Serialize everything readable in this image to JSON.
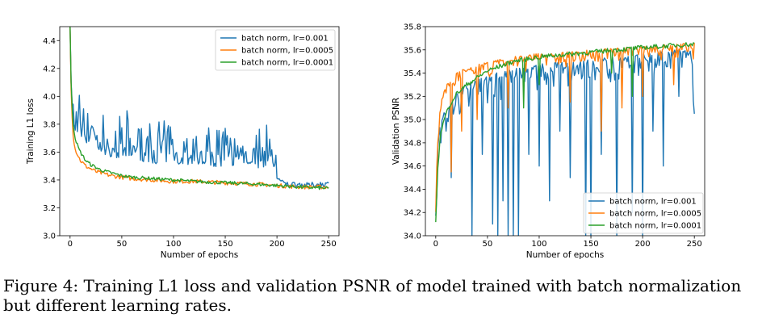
{
  "caption": "Figure 4: Training L1 loss and validation PSNR of model trained with batch normalization but different learning rates.",
  "colors": {
    "lr_0001": "#1f77b4",
    "lr_00005": "#ff7f0e",
    "lr_00001": "#2ca02c"
  },
  "chart_data": [
    {
      "type": "line",
      "title": "",
      "xlabel": "Number of epochs",
      "ylabel": "Training L1 loss",
      "xlim": [
        -10,
        260
      ],
      "ylim": [
        3.0,
        4.5
      ],
      "xticks": [
        0,
        50,
        100,
        150,
        200,
        250
      ],
      "yticks": [
        3.0,
        3.2,
        3.4,
        3.6,
        3.8,
        4.0,
        4.2,
        4.4
      ],
      "grid": false,
      "legend_position": "upper-right",
      "series": [
        {
          "name": "batch norm, lr=0.001",
          "color": "#1f77b4",
          "x": [
            0,
            1,
            2,
            3,
            5,
            8,
            10,
            15,
            20,
            25,
            30,
            40,
            50,
            60,
            70,
            80,
            90,
            100,
            110,
            120,
            130,
            140,
            150,
            160,
            170,
            180,
            190,
            199,
            200,
            205,
            210,
            220,
            230,
            240,
            250
          ],
          "y": [
            4.5,
            4.1,
            3.95,
            3.82,
            3.78,
            3.75,
            3.74,
            3.7,
            3.68,
            3.65,
            3.62,
            3.6,
            3.58,
            3.58,
            3.57,
            3.55,
            3.56,
            3.55,
            3.55,
            3.54,
            3.55,
            3.53,
            3.53,
            3.54,
            3.55,
            3.52,
            3.53,
            3.52,
            3.42,
            3.38,
            3.37,
            3.37,
            3.36,
            3.37,
            3.37
          ],
          "noise": 0.12
        },
        {
          "name": "batch norm, lr=0.0005",
          "color": "#ff7f0e",
          "x": [
            0,
            1,
            2,
            3,
            5,
            8,
            10,
            15,
            20,
            25,
            30,
            40,
            50,
            60,
            80,
            100,
            120,
            150,
            180,
            200,
            220,
            250
          ],
          "y": [
            4.5,
            4.05,
            3.85,
            3.72,
            3.62,
            3.57,
            3.54,
            3.5,
            3.48,
            3.46,
            3.45,
            3.43,
            3.42,
            3.41,
            3.4,
            3.39,
            3.39,
            3.38,
            3.37,
            3.36,
            3.35,
            3.35
          ],
          "noise": 0.015
        },
        {
          "name": "batch norm, lr=0.0001",
          "color": "#2ca02c",
          "x": [
            0,
            1,
            2,
            3,
            5,
            8,
            10,
            15,
            20,
            25,
            30,
            40,
            50,
            60,
            80,
            100,
            120,
            150,
            180,
            200,
            220,
            250
          ],
          "y": [
            4.5,
            4.1,
            3.92,
            3.8,
            3.7,
            3.63,
            3.6,
            3.54,
            3.51,
            3.49,
            3.47,
            3.45,
            3.43,
            3.42,
            3.41,
            3.4,
            3.39,
            3.38,
            3.37,
            3.36,
            3.35,
            3.34
          ],
          "noise": 0.012
        }
      ]
    },
    {
      "type": "line",
      "title": "",
      "xlabel": "Number of epochs",
      "ylabel": "Validation PSNR",
      "xlim": [
        -10,
        260
      ],
      "ylim": [
        34.0,
        35.8
      ],
      "xticks": [
        0,
        50,
        100,
        150,
        200,
        250
      ],
      "yticks": [
        34.0,
        34.2,
        34.4,
        34.6,
        34.8,
        35.0,
        35.2,
        35.4,
        35.6,
        35.8
      ],
      "grid": false,
      "legend_position": "lower-right",
      "series": [
        {
          "name": "batch norm, lr=0.001",
          "color": "#1f77b4",
          "x": [
            0,
            2,
            5,
            10,
            20,
            30,
            50,
            80,
            100,
            150,
            200,
            230,
            240,
            245,
            248,
            250
          ],
          "y": [
            34.2,
            34.8,
            35.0,
            35.1,
            35.25,
            35.3,
            35.38,
            35.45,
            35.48,
            35.52,
            35.56,
            35.6,
            35.62,
            35.62,
            35.6,
            35.05
          ],
          "noise": 0.1,
          "dips_x": [
            5,
            10,
            15,
            35,
            45,
            55,
            60,
            65,
            70,
            75,
            80,
            90,
            100,
            110,
            120,
            130,
            145,
            150,
            160,
            175,
            190,
            200,
            210,
            220,
            235,
            250
          ],
          "dips_y": [
            34.8,
            34.9,
            34.5,
            34.0,
            34.7,
            34.1,
            34.0,
            34.3,
            34.0,
            34.0,
            34.0,
            34.7,
            34.6,
            34.3,
            34.9,
            34.5,
            34.0,
            34.0,
            34.7,
            34.0,
            34.2,
            34.0,
            34.9,
            34.6,
            35.2,
            35.05
          ]
        },
        {
          "name": "batch norm, lr=0.0005",
          "color": "#ff7f0e",
          "x": [
            0,
            2,
            5,
            10,
            20,
            30,
            50,
            80,
            100,
            150,
            200,
            230,
            250
          ],
          "y": [
            34.3,
            34.9,
            35.15,
            35.3,
            35.4,
            35.45,
            35.5,
            35.55,
            35.57,
            35.6,
            35.63,
            35.65,
            35.66
          ],
          "noise": 0.06,
          "dips_x": [
            15,
            25,
            40,
            70,
            130,
            160,
            180,
            200,
            230
          ],
          "dips_y": [
            34.55,
            34.9,
            35.0,
            35.1,
            35.15,
            34.9,
            35.1,
            35.2,
            35.3
          ]
        },
        {
          "name": "batch norm, lr=0.0001",
          "color": "#2ca02c",
          "x": [
            0,
            2,
            5,
            10,
            15,
            20,
            30,
            40,
            50,
            75,
            100,
            150,
            200,
            250
          ],
          "y": [
            34.1,
            34.6,
            34.9,
            35.05,
            35.15,
            35.22,
            35.3,
            35.36,
            35.42,
            35.5,
            35.54,
            35.58,
            35.62,
            35.65
          ],
          "noise": 0.02,
          "dips_x": [
            85,
            100,
            170,
            190
          ],
          "dips_y": [
            35.1,
            35.3,
            35.4,
            35.2
          ]
        }
      ]
    }
  ]
}
